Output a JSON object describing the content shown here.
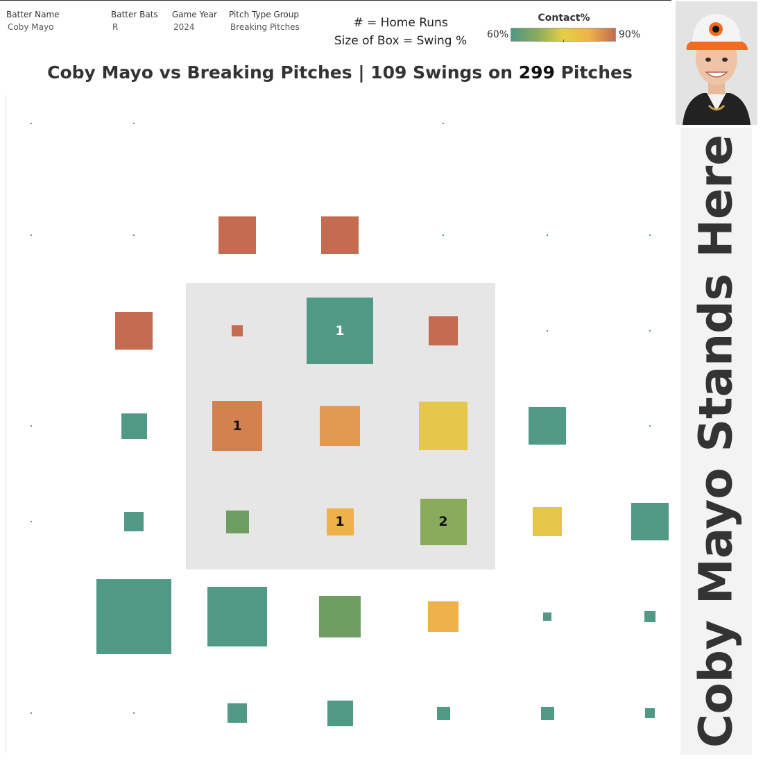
{
  "filters": [
    {
      "label": "Batter Name",
      "value": "Coby Mayo",
      "x": 9
    },
    {
      "label": "Batter Bats",
      "value": "R",
      "x": 160
    },
    {
      "label": "Game Year",
      "value": "2024",
      "x": 248
    },
    {
      "label": "Pitch Type Group",
      "value": "Breaking Pitches",
      "x": 330
    }
  ],
  "legend": {
    "hr_note": "# = Home Runs",
    "size_note": "Size of Box = Swing %",
    "contact_title": "Contact%",
    "contact_min": "60%",
    "contact_max": "90%"
  },
  "title": {
    "prefix": "Coby Mayo vs Breaking Pitches |  109 Swings on ",
    "pitches": "299",
    "suffix": " Pitches"
  },
  "standing_label": "Coby Mayo Stands Here",
  "colors": {
    "teal": "#4f9985",
    "green": "#6e9e61",
    "olive": "#8aaa5c",
    "yellow": "#e5c74a",
    "amber": "#efb24b",
    "orange": "#e29a52",
    "burnt": "#d2814f",
    "red": "#c46b50"
  },
  "chart_data": {
    "type": "heatmap",
    "title": "Coby Mayo vs Breaking Pitches |  109 Swings on 299 Pitches",
    "total_swings": 109,
    "total_pitches": 299,
    "encoding": {
      "label": "Home Runs",
      "size": "Swing %",
      "color": "Contact%",
      "color_range": [
        60,
        90
      ]
    },
    "columns": 7,
    "rows": 7,
    "cells": [
      {
        "row": 0,
        "col": 0,
        "size": 2,
        "color": "teal"
      },
      {
        "row": 0,
        "col": 1,
        "size": 2,
        "color": "teal"
      },
      {
        "row": 0,
        "col": 4,
        "size": 2,
        "color": "teal"
      },
      {
        "row": 1,
        "col": 0,
        "size": 2,
        "color": "teal"
      },
      {
        "row": 1,
        "col": 1,
        "size": 2,
        "color": "teal"
      },
      {
        "row": 1,
        "col": 2,
        "size": 54,
        "color": "red"
      },
      {
        "row": 1,
        "col": 3,
        "size": 54,
        "color": "red"
      },
      {
        "row": 1,
        "col": 4,
        "size": 2,
        "color": "teal"
      },
      {
        "row": 1,
        "col": 5,
        "size": 2,
        "color": "teal"
      },
      {
        "row": 1,
        "col": 6,
        "size": 2,
        "color": "teal"
      },
      {
        "row": 2,
        "col": 1,
        "size": 54,
        "color": "red"
      },
      {
        "row": 2,
        "col": 2,
        "size": 16,
        "color": "red"
      },
      {
        "row": 2,
        "col": 3,
        "size": 96,
        "color": "teal",
        "hr": "1"
      },
      {
        "row": 2,
        "col": 4,
        "size": 42,
        "color": "red"
      },
      {
        "row": 2,
        "col": 5,
        "size": 2,
        "color": "teal"
      },
      {
        "row": 2,
        "col": 6,
        "size": 2,
        "color": "teal"
      },
      {
        "row": 3,
        "col": 0,
        "size": 2,
        "color": "teal"
      },
      {
        "row": 3,
        "col": 1,
        "size": 37,
        "color": "teal"
      },
      {
        "row": 3,
        "col": 2,
        "size": 72,
        "color": "burnt",
        "hr": "1"
      },
      {
        "row": 3,
        "col": 3,
        "size": 58,
        "color": "orange"
      },
      {
        "row": 3,
        "col": 4,
        "size": 70,
        "color": "yellow"
      },
      {
        "row": 3,
        "col": 5,
        "size": 54,
        "color": "teal"
      },
      {
        "row": 3,
        "col": 6,
        "size": 2,
        "color": "teal"
      },
      {
        "row": 4,
        "col": 0,
        "size": 2,
        "color": "teal"
      },
      {
        "row": 4,
        "col": 1,
        "size": 28,
        "color": "teal"
      },
      {
        "row": 4,
        "col": 2,
        "size": 33,
        "color": "green"
      },
      {
        "row": 4,
        "col": 3,
        "size": 39,
        "color": "amber",
        "hr": "1"
      },
      {
        "row": 4,
        "col": 4,
        "size": 67,
        "color": "olive",
        "hr": "2"
      },
      {
        "row": 4,
        "col": 5,
        "size": 42,
        "color": "yellow"
      },
      {
        "row": 4,
        "col": 6,
        "size": 54,
        "color": "teal"
      },
      {
        "row": 5,
        "col": 1,
        "size": 108,
        "color": "teal"
      },
      {
        "row": 5,
        "col": 2,
        "size": 86,
        "color": "teal"
      },
      {
        "row": 5,
        "col": 3,
        "size": 60,
        "color": "green"
      },
      {
        "row": 5,
        "col": 4,
        "size": 44,
        "color": "amber"
      },
      {
        "row": 5,
        "col": 5,
        "size": 12,
        "color": "teal"
      },
      {
        "row": 5,
        "col": 6,
        "size": 16,
        "color": "teal"
      },
      {
        "row": 6,
        "col": 0,
        "size": 2,
        "color": "teal"
      },
      {
        "row": 6,
        "col": 1,
        "size": 2,
        "color": "teal"
      },
      {
        "row": 6,
        "col": 2,
        "size": 28,
        "color": "teal"
      },
      {
        "row": 6,
        "col": 3,
        "size": 37,
        "color": "teal"
      },
      {
        "row": 6,
        "col": 4,
        "size": 19,
        "color": "teal"
      },
      {
        "row": 6,
        "col": 5,
        "size": 19,
        "color": "teal"
      },
      {
        "row": 6,
        "col": 6,
        "size": 14,
        "color": "teal"
      }
    ]
  }
}
